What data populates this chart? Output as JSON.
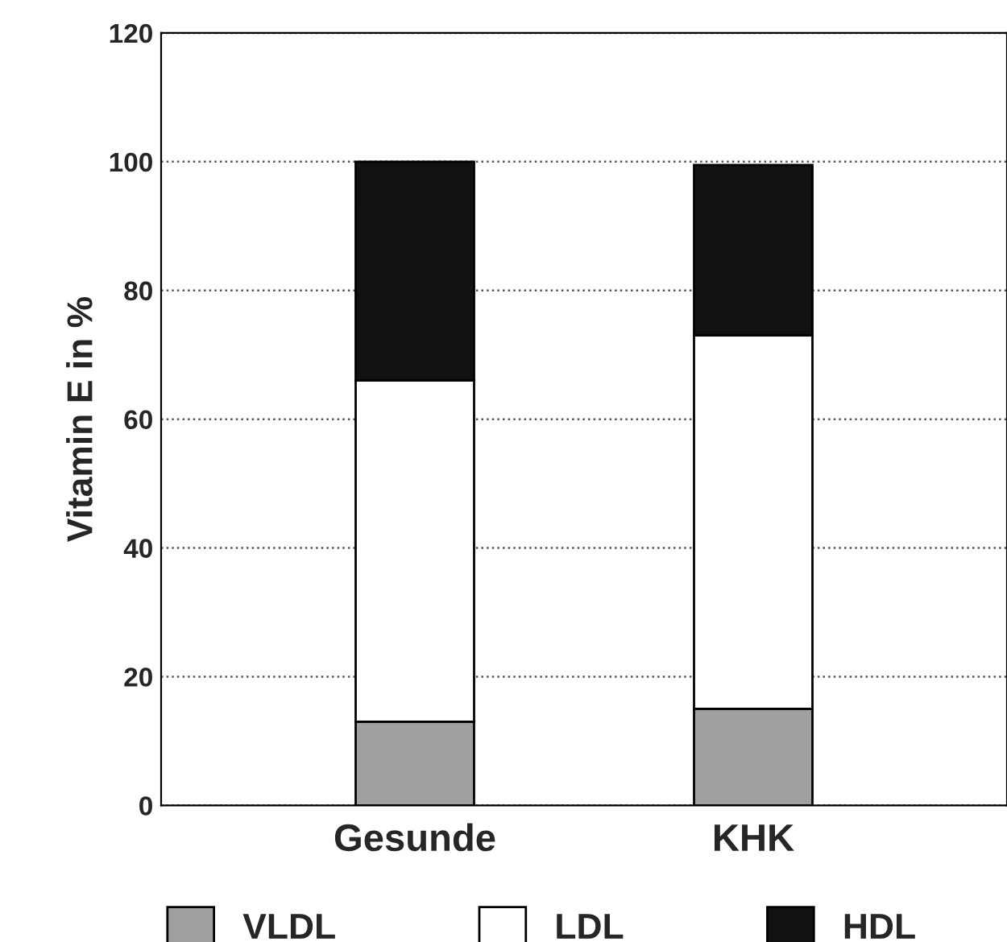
{
  "chart_data": {
    "type": "bar",
    "stacked": true,
    "ylabel": "Vitamin E in %",
    "categories": [
      "Gesunde",
      "KHK"
    ],
    "series": [
      {
        "name": "VLDL",
        "color": "#a0a0a0",
        "values": [
          13,
          15
        ]
      },
      {
        "name": "LDL",
        "color": "#ffffff",
        "values": [
          53,
          58
        ]
      },
      {
        "name": "HDL",
        "color": "#111111",
        "values": [
          34,
          26.5
        ]
      }
    ],
    "ylim": [
      0,
      120
    ],
    "yticks": [
      0,
      20,
      40,
      60,
      80,
      100,
      120
    ],
    "grid": "y",
    "legend": "bottom"
  }
}
